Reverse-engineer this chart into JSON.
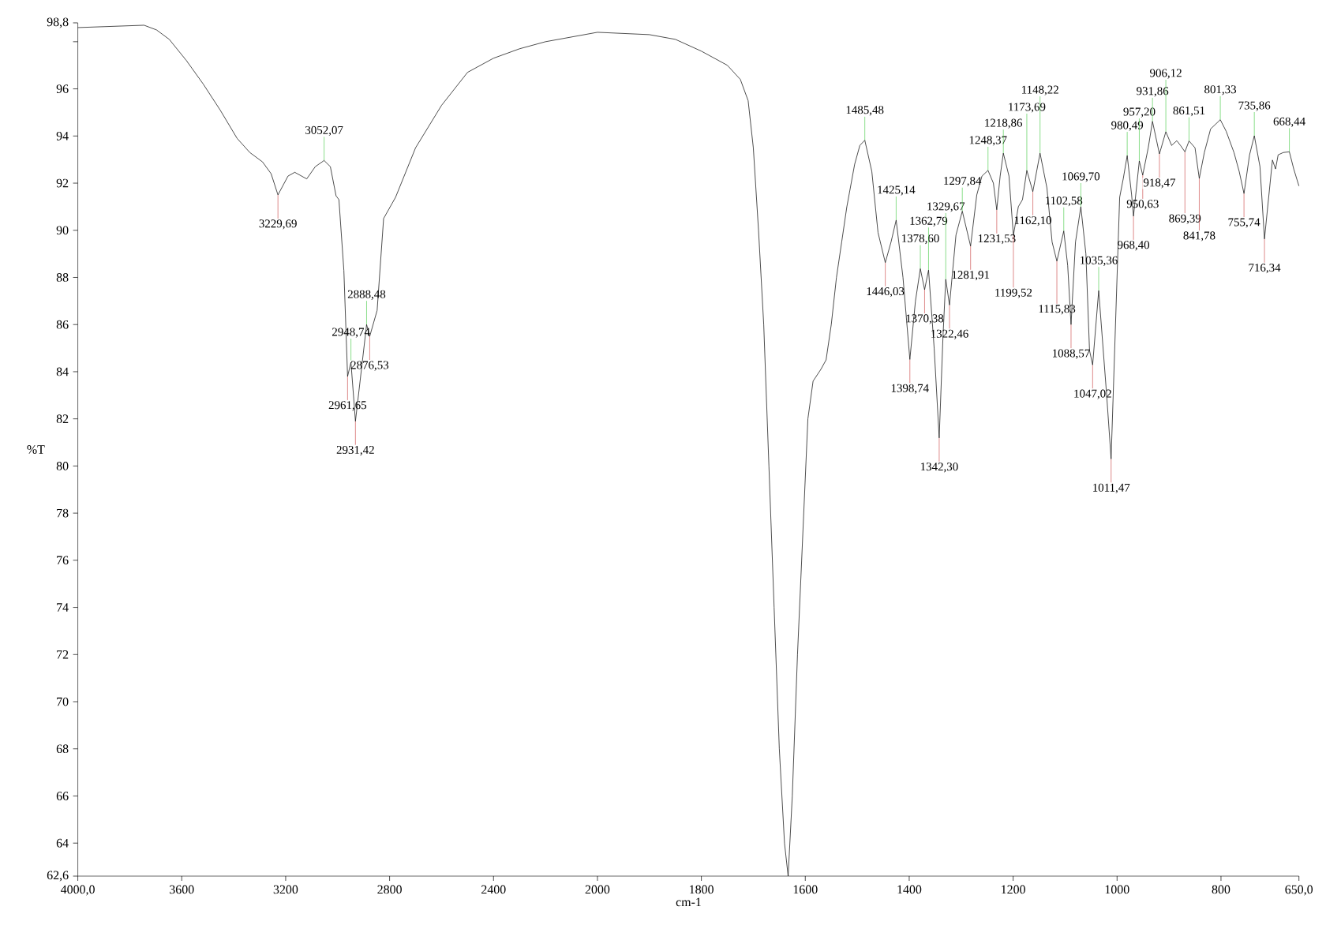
{
  "chart_data": [
    {
      "type": "line",
      "ylabel": "%T",
      "xlim": [
        4000,
        2000
      ],
      "ylim": [
        62.6,
        98.8
      ],
      "xticks": [
        {
          "value": 4000,
          "label": "4000,0"
        },
        3600,
        3200,
        2800,
        2400,
        2000
      ],
      "yticks": [
        {
          "value": 62.6,
          "label": "62,6"
        },
        64,
        66,
        68,
        70,
        72,
        74,
        76,
        78,
        80,
        82,
        84,
        86,
        88,
        90,
        92,
        94,
        96,
        {
          "value": 98,
          "label": null
        },
        {
          "value": 98.8,
          "label": "98,8"
        }
      ],
      "x": [
        4000,
        3745,
        3697,
        3648,
        3582,
        3517,
        3452,
        3387,
        3338,
        3289,
        3256,
        3229.69,
        3191,
        3165,
        3119,
        3086,
        3052.07,
        3028,
        3006,
        2995,
        2976,
        2961.65,
        2948.74,
        2931.42,
        2888.48,
        2876.53,
        2848,
        2823,
        2777,
        2700,
        2600,
        2500,
        2400,
        2300,
        2200,
        2100,
        2000
      ],
      "series": [
        {
          "color": "#000000",
          "values": [
            98.6,
            98.7,
            98.5,
            98.1,
            97.2,
            96.2,
            95.1,
            93.9,
            93.3,
            92.9,
            92.4,
            91.5,
            92.3,
            92.46,
            92.18,
            92.7,
            92.96,
            92.7,
            91.46,
            91.3,
            88.3,
            83.8,
            84.4,
            81.9,
            86.0,
            85.5,
            86.6,
            90.5,
            91.4,
            93.5,
            95.3,
            96.7,
            97.3,
            97.7,
            98.0,
            98.2,
            98.4
          ]
        }
      ],
      "annotations": [
        {
          "text": "3229,69",
          "x": 3229.69,
          "y": 91.5
        },
        {
          "text": "3052,07",
          "x": 3052.07,
          "y": 92.96
        },
        {
          "text": "2961,65",
          "x": 2961.65,
          "y": 83.8
        },
        {
          "text": "2948,74",
          "x": 2948.74,
          "y": 84.4
        },
        {
          "text": "2931,42",
          "x": 2931.42,
          "y": 81.9
        },
        {
          "text": "2888,48",
          "x": 2888.48,
          "y": 86.0
        },
        {
          "text": "2876,53",
          "x": 2876.53,
          "y": 85.5
        }
      ]
    },
    {
      "type": "line",
      "xlabel": "cm-1",
      "tick_labels": "x",
      "xlim": [
        2000,
        650
      ],
      "ylim": [
        62.6,
        98.8
      ],
      "xticks": [
        1800,
        1600,
        1400,
        1200,
        1000,
        800,
        {
          "value": 650,
          "label": "650,0"
        }
      ],
      "x": [
        2000,
        1900,
        1850,
        1800,
        1750,
        1725,
        1710,
        1700,
        1690,
        1680,
        1670,
        1660,
        1650,
        1640,
        1633,
        1625,
        1615,
        1595,
        1585,
        1570,
        1560,
        1550,
        1540,
        1530,
        1520,
        1505,
        1495,
        1485.48,
        1472,
        1460,
        1446.03,
        1435,
        1425.14,
        1412,
        1398.74,
        1388,
        1378.6,
        1370.38,
        1362.79,
        1352,
        1342.3,
        1335,
        1329.67,
        1322.46,
        1310,
        1297.84,
        1281.91,
        1270,
        1260,
        1248.37,
        1238,
        1231.53,
        1225,
        1218.86,
        1208,
        1199.52,
        1190,
        1182,
        1173.69,
        1162.1,
        1148.22,
        1135,
        1125,
        1115.83,
        1102.58,
        1095,
        1088.57,
        1080,
        1069.7,
        1060,
        1053,
        1047.02,
        1035.36,
        1020,
        1011.47,
        995,
        988,
        980.49,
        972,
        968.4,
        957.2,
        950.63,
        940,
        931.86,
        918.47,
        906.12,
        895,
        885,
        878,
        869.39,
        861.51,
        850,
        841.78,
        832,
        820,
        801.33,
        790,
        775,
        765,
        755.74,
        745,
        735.86,
        725,
        716.34,
        701,
        695,
        690,
        680,
        668.44,
        660,
        650
      ],
      "series": [
        {
          "color": "#000000",
          "values": [
            98.4,
            98.3,
            98.1,
            97.6,
            97.0,
            96.4,
            95.5,
            93.5,
            90.0,
            86.0,
            80.0,
            74.0,
            68.0,
            64.0,
            62.6,
            66.0,
            72.0,
            82.0,
            83.6,
            84.1,
            84.5,
            86.0,
            88.0,
            89.5,
            91.0,
            92.8,
            93.6,
            93.82,
            92.5,
            89.9,
            88.63,
            89.5,
            90.43,
            88.0,
            84.52,
            87.0,
            88.37,
            87.48,
            88.31,
            85.0,
            81.19,
            85.5,
            87.92,
            86.83,
            89.8,
            90.81,
            89.33,
            91.5,
            92.3,
            92.54,
            92.0,
            90.87,
            92.3,
            93.27,
            92.3,
            89.78,
            91.0,
            91.3,
            92.54,
            91.64,
            93.27,
            91.8,
            89.5,
            88.69,
            89.97,
            88.5,
            86.0,
            89.5,
            91.0,
            89.0,
            84.9,
            84.29,
            87.44,
            83.0,
            80.3,
            91.4,
            92.2,
            93.17,
            91.5,
            90.6,
            92.94,
            92.34,
            93.5,
            94.62,
            93.24,
            94.18,
            93.6,
            93.8,
            93.6,
            93.33,
            93.79,
            93.5,
            92.2,
            93.3,
            94.3,
            94.69,
            94.2,
            93.3,
            92.5,
            91.56,
            93.2,
            94.01,
            92.7,
            89.63,
            92.98,
            92.6,
            93.2,
            93.3,
            93.33,
            92.6,
            91.88
          ]
        }
      ],
      "annotations": [
        {
          "text": "1485,48",
          "x": 1485.48,
          "y": 93.82
        },
        {
          "text": "1446,03",
          "x": 1446.03,
          "y": 88.63
        },
        {
          "text": "1425,14",
          "x": 1425.14,
          "y": 90.43
        },
        {
          "text": "1398,74",
          "x": 1398.74,
          "y": 84.52
        },
        {
          "text": "1378,60",
          "x": 1378.6,
          "y": 88.37
        },
        {
          "text": "1370,38",
          "x": 1370.38,
          "y": 87.48
        },
        {
          "text": "1362,79",
          "x": 1362.79,
          "y": 88.31
        },
        {
          "text": "1342,30",
          "x": 1342.3,
          "y": 81.19
        },
        {
          "text": "1329,67",
          "x": 1329.67,
          "y": 87.92
        },
        {
          "text": "1322,46",
          "x": 1322.46,
          "y": 86.83
        },
        {
          "text": "1297,84",
          "x": 1297.84,
          "y": 90.81
        },
        {
          "text": "1281,91",
          "x": 1281.91,
          "y": 89.33
        },
        {
          "text": "1248,37",
          "x": 1248.37,
          "y": 92.54
        },
        {
          "text": "1231,53",
          "x": 1231.53,
          "y": 90.87
        },
        {
          "text": "1218,86",
          "x": 1218.86,
          "y": 93.27
        },
        {
          "text": "1199,52",
          "x": 1199.52,
          "y": 89.78
        },
        {
          "text": "1173,69",
          "x": 1173.69,
          "y": 92.54
        },
        {
          "text": "1162,10",
          "x": 1162.1,
          "y": 91.64
        },
        {
          "text": "1148,22",
          "x": 1148.22,
          "y": 93.27
        },
        {
          "text": "1115,83",
          "x": 1115.83,
          "y": 88.69
        },
        {
          "text": "1102,58",
          "x": 1102.58,
          "y": 89.97
        },
        {
          "text": "1088,57",
          "x": 1088.57,
          "y": 86.0
        },
        {
          "text": "1069,70",
          "x": 1069.7,
          "y": 91.0
        },
        {
          "text": "1047,02",
          "x": 1047.02,
          "y": 84.29
        },
        {
          "text": "1035,36",
          "x": 1035.36,
          "y": 87.44
        },
        {
          "text": "1011,47",
          "x": 1011.47,
          "y": 80.3
        },
        {
          "text": "980,49",
          "x": 980.49,
          "y": 93.17
        },
        {
          "text": "968,40",
          "x": 968.4,
          "y": 90.6
        },
        {
          "text": "957,20",
          "x": 957.2,
          "y": 92.94
        },
        {
          "text": "950,63",
          "x": 950.63,
          "y": 92.34
        },
        {
          "text": "931,86",
          "x": 931.86,
          "y": 94.62
        },
        {
          "text": "918,47",
          "x": 918.47,
          "y": 93.24
        },
        {
          "text": "906,12",
          "x": 906.12,
          "y": 94.18
        },
        {
          "text": "869,39",
          "x": 869.39,
          "y": 93.33
        },
        {
          "text": "861,51",
          "x": 861.51,
          "y": 93.79
        },
        {
          "text": "841,78",
          "x": 841.78,
          "y": 92.2
        },
        {
          "text": "801,33",
          "x": 801.33,
          "y": 94.69
        },
        {
          "text": "755,74",
          "x": 755.74,
          "y": 91.56
        },
        {
          "text": "735,86",
          "x": 735.86,
          "y": 94.01
        },
        {
          "text": "716,34",
          "x": 716.34,
          "y": 89.63
        },
        {
          "text": "668,44",
          "x": 668.44,
          "y": 93.33
        }
      ]
    }
  ]
}
